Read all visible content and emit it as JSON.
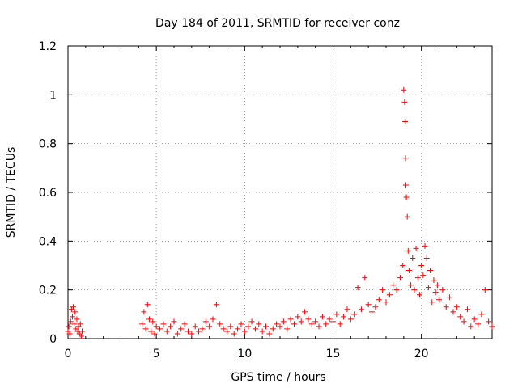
{
  "chart_data": {
    "type": "scatter",
    "title": "Day 184 of 2011, SRMTID for receiver conz",
    "xlabel": "GPS time / hours",
    "ylabel": "SRMTID / TECUs",
    "xlim": [
      0,
      24
    ],
    "ylim": [
      0,
      1.2
    ],
    "xticks": [
      0,
      5,
      10,
      15,
      20
    ],
    "yticks": [
      0,
      0.2,
      0.4,
      0.6,
      0.8,
      1,
      1.2
    ],
    "xtick_labels": [
      "0",
      "5",
      "10",
      "15",
      "20"
    ],
    "ytick_labels": [
      "0",
      "0.2",
      "0.4",
      "0.6",
      "0.8",
      "1",
      "1.2"
    ],
    "grid": true,
    "marker": "+",
    "series": [
      {
        "name": "SRMTID",
        "color": "#ff0000",
        "x": [
          0.0,
          0.05,
          0.1,
          0.15,
          0.2,
          0.25,
          0.3,
          0.35,
          0.4,
          0.45,
          0.5,
          0.55,
          0.6,
          0.65,
          0.7,
          0.75,
          0.8,
          4.2,
          4.3,
          4.4,
          4.5,
          4.6,
          4.7,
          4.8,
          4.9,
          5.0,
          5.2,
          5.4,
          5.6,
          5.8,
          6.0,
          6.2,
          6.4,
          6.6,
          6.8,
          7.0,
          7.2,
          7.4,
          7.6,
          7.8,
          8.0,
          8.2,
          8.4,
          8.6,
          8.8,
          9.0,
          9.2,
          9.4,
          9.6,
          9.8,
          10.0,
          10.2,
          10.4,
          10.6,
          10.8,
          11.0,
          11.2,
          11.4,
          11.6,
          11.8,
          12.0,
          12.2,
          12.4,
          12.6,
          12.8,
          13.0,
          13.2,
          13.4,
          13.6,
          13.8,
          14.0,
          14.2,
          14.4,
          14.6,
          14.8,
          15.0,
          15.2,
          15.4,
          15.6,
          15.8,
          16.0,
          16.2,
          16.4,
          16.6,
          16.8,
          17.0,
          17.2,
          17.4,
          17.6,
          17.8,
          18.0,
          18.2,
          18.4,
          18.6,
          18.8,
          18.95,
          19.0,
          19.05,
          19.08,
          19.1,
          19.12,
          19.15,
          19.2,
          19.25,
          19.3,
          19.4,
          19.5,
          19.6,
          19.7,
          19.8,
          19.9,
          20.0,
          20.1,
          20.2,
          20.3,
          20.4,
          20.5,
          20.6,
          20.7,
          20.8,
          20.9,
          21.0,
          21.2,
          21.4,
          21.6,
          21.8,
          22.0,
          22.2,
          22.4,
          22.6,
          22.8,
          23.0,
          23.2,
          23.4,
          23.6,
          23.8,
          24.0
        ],
        "y": [
          0.03,
          0.05,
          0.02,
          0.07,
          0.12,
          0.09,
          0.13,
          0.06,
          0.11,
          0.04,
          0.08,
          0.03,
          0.05,
          0.02,
          0.06,
          0.01,
          0.03,
          0.06,
          0.11,
          0.04,
          0.14,
          0.08,
          0.03,
          0.07,
          0.02,
          0.05,
          0.04,
          0.06,
          0.03,
          0.05,
          0.07,
          0.02,
          0.04,
          0.06,
          0.03,
          0.02,
          0.05,
          0.03,
          0.04,
          0.07,
          0.05,
          0.08,
          0.14,
          0.06,
          0.04,
          0.03,
          0.05,
          0.02,
          0.04,
          0.06,
          0.03,
          0.05,
          0.07,
          0.04,
          0.06,
          0.03,
          0.05,
          0.02,
          0.04,
          0.06,
          0.05,
          0.07,
          0.04,
          0.08,
          0.06,
          0.09,
          0.07,
          0.11,
          0.08,
          0.06,
          0.07,
          0.05,
          0.09,
          0.06,
          0.08,
          0.07,
          0.1,
          0.06,
          0.09,
          0.12,
          0.08,
          0.1,
          0.21,
          0.12,
          0.25,
          0.14,
          0.11,
          0.13,
          0.16,
          0.2,
          0.15,
          0.18,
          0.22,
          0.2,
          0.25,
          0.3,
          1.02,
          0.97,
          0.89,
          0.74,
          0.63,
          0.58,
          0.5,
          0.36,
          0.28,
          0.22,
          0.33,
          0.2,
          0.37,
          0.25,
          0.18,
          0.3,
          0.26,
          0.38,
          0.33,
          0.21,
          0.28,
          0.15,
          0.24,
          0.19,
          0.22,
          0.16,
          0.2,
          0.13,
          0.17,
          0.11,
          0.13,
          0.09,
          0.07,
          0.12,
          0.05,
          0.08,
          0.06,
          0.1,
          0.2,
          0.07,
          0.05
        ]
      }
    ]
  }
}
